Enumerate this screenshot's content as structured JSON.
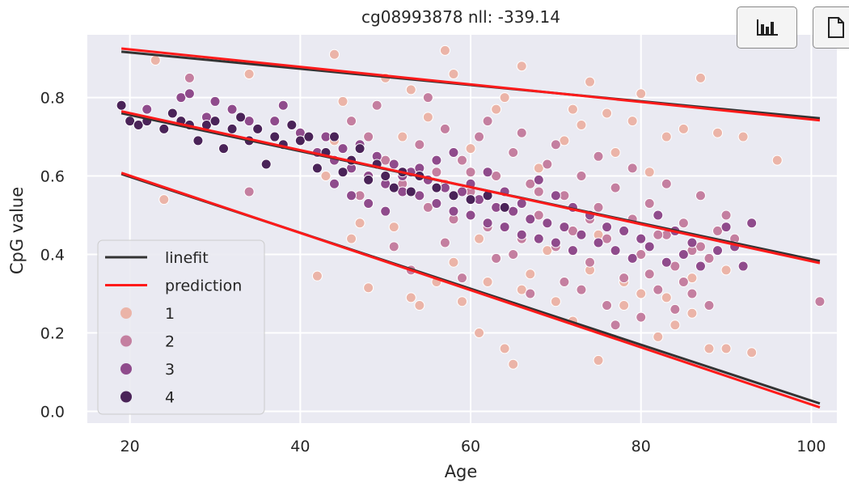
{
  "toolbar": {
    "buttons": [
      {
        "icon": "bar-chart-icon"
      },
      {
        "icon": "document-icon"
      }
    ]
  },
  "colors": {
    "background": "#eaeaf2",
    "grid": "#ffffff",
    "linefit": "#333333",
    "prediction": "#ff1a1a",
    "group_1": "#ebb4a8",
    "group_2": "#c47fa0",
    "group_3": "#8f4b8c",
    "group_4": "#4a2358"
  },
  "chart_data": {
    "type": "scatter",
    "title": "cg08993878 nll:  -339.14",
    "xlabel": "Age",
    "ylabel": "CpG value",
    "xlim": [
      15,
      103
    ],
    "ylim": [
      -0.03,
      0.96
    ],
    "xticks": [
      "20",
      "40",
      "60",
      "80",
      "100"
    ],
    "yticks": [
      "0.0",
      "0.2",
      "0.4",
      "0.6",
      "0.8"
    ],
    "grid": true,
    "legend_position": "lower-left",
    "lines": [
      {
        "name": "linefit",
        "color": "#333333",
        "segments": [
          {
            "x": [
              19,
              101
            ],
            "y": [
              0.917,
              0.747
            ]
          },
          {
            "x": [
              19,
              101
            ],
            "y": [
              0.76,
              0.383
            ]
          },
          {
            "x": [
              19,
              101
            ],
            "y": [
              0.605,
              0.02
            ]
          }
        ]
      },
      {
        "name": "prediction",
        "color": "#ff1a1a",
        "segments": [
          {
            "x": [
              19,
              101
            ],
            "y": [
              0.925,
              0.742
            ]
          },
          {
            "x": [
              19,
              101
            ],
            "y": [
              0.765,
              0.378
            ]
          },
          {
            "x": [
              19,
              101
            ],
            "y": [
              0.608,
              0.01
            ]
          }
        ]
      }
    ],
    "series": [
      {
        "name": "1",
        "color": "#ebb4a8",
        "points": [
          [
            23,
            0.895
          ],
          [
            24,
            0.54
          ],
          [
            34,
            0.86
          ],
          [
            42,
            0.345
          ],
          [
            44,
            0.91
          ],
          [
            46,
            0.44
          ],
          [
            48,
            0.315
          ],
          [
            50,
            0.85
          ],
          [
            53,
            0.29
          ],
          [
            54,
            0.27
          ],
          [
            56,
            0.33
          ],
          [
            57,
            0.92
          ],
          [
            58,
            0.86
          ],
          [
            59,
            0.28
          ],
          [
            61,
            0.2
          ],
          [
            62,
            0.33
          ],
          [
            64,
            0.16
          ],
          [
            65,
            0.12
          ],
          [
            66,
            0.88
          ],
          [
            67,
            0.35
          ],
          [
            70,
            0.28
          ],
          [
            72,
            0.23
          ],
          [
            74,
            0.84
          ],
          [
            75,
            0.13
          ],
          [
            76,
            0.76
          ],
          [
            78,
            0.27
          ],
          [
            79,
            0.74
          ],
          [
            80,
            0.3
          ],
          [
            82,
            0.19
          ],
          [
            84,
            0.22
          ],
          [
            86,
            0.25
          ],
          [
            87,
            0.85
          ],
          [
            88,
            0.16
          ],
          [
            90,
            0.16
          ],
          [
            92,
            0.7
          ],
          [
            93,
            0.15
          ],
          [
            96,
            0.64
          ],
          [
            45,
            0.79
          ],
          [
            49,
            0.65
          ],
          [
            52,
            0.7
          ],
          [
            55,
            0.75
          ],
          [
            60,
            0.67
          ],
          [
            63,
            0.77
          ],
          [
            68,
            0.62
          ],
          [
            71,
            0.69
          ],
          [
            73,
            0.73
          ],
          [
            77,
            0.66
          ],
          [
            81,
            0.61
          ],
          [
            83,
            0.7
          ],
          [
            85,
            0.72
          ],
          [
            89,
            0.71
          ],
          [
            47,
            0.48
          ],
          [
            51,
            0.47
          ],
          [
            58,
            0.38
          ],
          [
            61,
            0.44
          ],
          [
            66,
            0.31
          ],
          [
            69,
            0.41
          ],
          [
            74,
            0.36
          ],
          [
            78,
            0.33
          ],
          [
            83,
            0.29
          ],
          [
            86,
            0.34
          ],
          [
            90,
            0.36
          ],
          [
            43,
            0.6
          ],
          [
            53,
            0.82
          ],
          [
            64,
            0.8
          ],
          [
            72,
            0.77
          ],
          [
            80,
            0.81
          ],
          [
            44,
            0.69
          ],
          [
            57,
            0.58
          ],
          [
            75,
            0.45
          ]
        ]
      },
      {
        "name": "2",
        "color": "#c47fa0",
        "points": [
          [
            27,
            0.85
          ],
          [
            34,
            0.56
          ],
          [
            46,
            0.74
          ],
          [
            48,
            0.7
          ],
          [
            50,
            0.64
          ],
          [
            52,
            0.58
          ],
          [
            54,
            0.68
          ],
          [
            55,
            0.52
          ],
          [
            56,
            0.61
          ],
          [
            57,
            0.72
          ],
          [
            58,
            0.49
          ],
          [
            59,
            0.64
          ],
          [
            60,
            0.56
          ],
          [
            61,
            0.7
          ],
          [
            62,
            0.47
          ],
          [
            63,
            0.6
          ],
          [
            64,
            0.52
          ],
          [
            65,
            0.66
          ],
          [
            66,
            0.44
          ],
          [
            67,
            0.58
          ],
          [
            68,
            0.5
          ],
          [
            69,
            0.63
          ],
          [
            70,
            0.42
          ],
          [
            71,
            0.55
          ],
          [
            72,
            0.46
          ],
          [
            73,
            0.6
          ],
          [
            74,
            0.38
          ],
          [
            75,
            0.52
          ],
          [
            76,
            0.44
          ],
          [
            77,
            0.57
          ],
          [
            78,
            0.34
          ],
          [
            79,
            0.49
          ],
          [
            80,
            0.4
          ],
          [
            81,
            0.53
          ],
          [
            82,
            0.31
          ],
          [
            83,
            0.45
          ],
          [
            84,
            0.37
          ],
          [
            85,
            0.48
          ],
          [
            86,
            0.3
          ],
          [
            87,
            0.42
          ],
          [
            88,
            0.39
          ],
          [
            89,
            0.46
          ],
          [
            91,
            0.44
          ],
          [
            101,
            0.28
          ],
          [
            51,
            0.42
          ],
          [
            53,
            0.36
          ],
          [
            59,
            0.34
          ],
          [
            63,
            0.39
          ],
          [
            67,
            0.3
          ],
          [
            71,
            0.33
          ],
          [
            76,
            0.27
          ],
          [
            80,
            0.24
          ],
          [
            84,
            0.26
          ],
          [
            49,
            0.78
          ],
          [
            55,
            0.8
          ],
          [
            62,
            0.74
          ],
          [
            66,
            0.71
          ],
          [
            70,
            0.68
          ],
          [
            75,
            0.65
          ],
          [
            79,
            0.62
          ],
          [
            83,
            0.58
          ],
          [
            87,
            0.55
          ],
          [
            90,
            0.5
          ],
          [
            57,
            0.43
          ],
          [
            65,
            0.4
          ],
          [
            73,
            0.31
          ],
          [
            77,
            0.22
          ],
          [
            81,
            0.35
          ],
          [
            85,
            0.33
          ],
          [
            88,
            0.27
          ],
          [
            47,
            0.55
          ],
          [
            60,
            0.61
          ],
          [
            68,
            0.56
          ],
          [
            74,
            0.49
          ],
          [
            82,
            0.45
          ],
          [
            86,
            0.41
          ]
        ]
      },
      {
        "name": "3",
        "color": "#8f4b8c",
        "points": [
          [
            22,
            0.77
          ],
          [
            26,
            0.8
          ],
          [
            27,
            0.81
          ],
          [
            29,
            0.75
          ],
          [
            30,
            0.79
          ],
          [
            32,
            0.77
          ],
          [
            34,
            0.74
          ],
          [
            35,
            0.72
          ],
          [
            37,
            0.74
          ],
          [
            38,
            0.78
          ],
          [
            40,
            0.71
          ],
          [
            42,
            0.66
          ],
          [
            43,
            0.7
          ],
          [
            44,
            0.64
          ],
          [
            45,
            0.67
          ],
          [
            46,
            0.62
          ],
          [
            47,
            0.68
          ],
          [
            48,
            0.6
          ],
          [
            49,
            0.65
          ],
          [
            50,
            0.58
          ],
          [
            51,
            0.63
          ],
          [
            52,
            0.56
          ],
          [
            53,
            0.61
          ],
          [
            54,
            0.55
          ],
          [
            55,
            0.59
          ],
          [
            56,
            0.53
          ],
          [
            57,
            0.57
          ],
          [
            58,
            0.51
          ],
          [
            59,
            0.56
          ],
          [
            60,
            0.5
          ],
          [
            61,
            0.54
          ],
          [
            62,
            0.48
          ],
          [
            63,
            0.52
          ],
          [
            64,
            0.47
          ],
          [
            65,
            0.51
          ],
          [
            66,
            0.45
          ],
          [
            67,
            0.49
          ],
          [
            68,
            0.44
          ],
          [
            69,
            0.48
          ],
          [
            70,
            0.43
          ],
          [
            71,
            0.47
          ],
          [
            72,
            0.41
          ],
          [
            73,
            0.45
          ],
          [
            75,
            0.43
          ],
          [
            77,
            0.41
          ],
          [
            79,
            0.39
          ],
          [
            81,
            0.42
          ],
          [
            83,
            0.38
          ],
          [
            85,
            0.4
          ],
          [
            87,
            0.37
          ],
          [
            89,
            0.41
          ],
          [
            92,
            0.37
          ],
          [
            93,
            0.48
          ],
          [
            44,
            0.58
          ],
          [
            46,
            0.55
          ],
          [
            48,
            0.53
          ],
          [
            50,
            0.51
          ],
          [
            52,
            0.6
          ],
          [
            54,
            0.62
          ],
          [
            56,
            0.64
          ],
          [
            58,
            0.66
          ],
          [
            60,
            0.58
          ],
          [
            62,
            0.61
          ],
          [
            64,
            0.56
          ],
          [
            66,
            0.53
          ],
          [
            68,
            0.59
          ],
          [
            70,
            0.55
          ],
          [
            72,
            0.52
          ],
          [
            74,
            0.5
          ],
          [
            76,
            0.47
          ],
          [
            78,
            0.46
          ],
          [
            80,
            0.44
          ],
          [
            82,
            0.5
          ],
          [
            84,
            0.46
          ],
          [
            86,
            0.43
          ],
          [
            90,
            0.47
          ],
          [
            91,
            0.42
          ]
        ]
      },
      {
        "name": "4",
        "color": "#4a2358",
        "points": [
          [
            19,
            0.78
          ],
          [
            20,
            0.74
          ],
          [
            21,
            0.73
          ],
          [
            22,
            0.74
          ],
          [
            24,
            0.72
          ],
          [
            25,
            0.76
          ],
          [
            26,
            0.74
          ],
          [
            27,
            0.73
          ],
          [
            28,
            0.69
          ],
          [
            29,
            0.73
          ],
          [
            30,
            0.74
          ],
          [
            31,
            0.67
          ],
          [
            32,
            0.72
          ],
          [
            33,
            0.75
          ],
          [
            34,
            0.69
          ],
          [
            35,
            0.72
          ],
          [
            36,
            0.63
          ],
          [
            37,
            0.7
          ],
          [
            38,
            0.68
          ],
          [
            39,
            0.73
          ],
          [
            40,
            0.69
          ],
          [
            41,
            0.7
          ],
          [
            42,
            0.62
          ],
          [
            43,
            0.66
          ],
          [
            44,
            0.7
          ],
          [
            45,
            0.61
          ],
          [
            46,
            0.64
          ],
          [
            47,
            0.67
          ],
          [
            48,
            0.59
          ],
          [
            49,
            0.63
          ],
          [
            50,
            0.6
          ],
          [
            51,
            0.57
          ],
          [
            52,
            0.61
          ],
          [
            53,
            0.56
          ],
          [
            54,
            0.6
          ],
          [
            56,
            0.57
          ],
          [
            58,
            0.55
          ],
          [
            60,
            0.54
          ],
          [
            62,
            0.55
          ],
          [
            64,
            0.52
          ]
        ]
      }
    ]
  }
}
